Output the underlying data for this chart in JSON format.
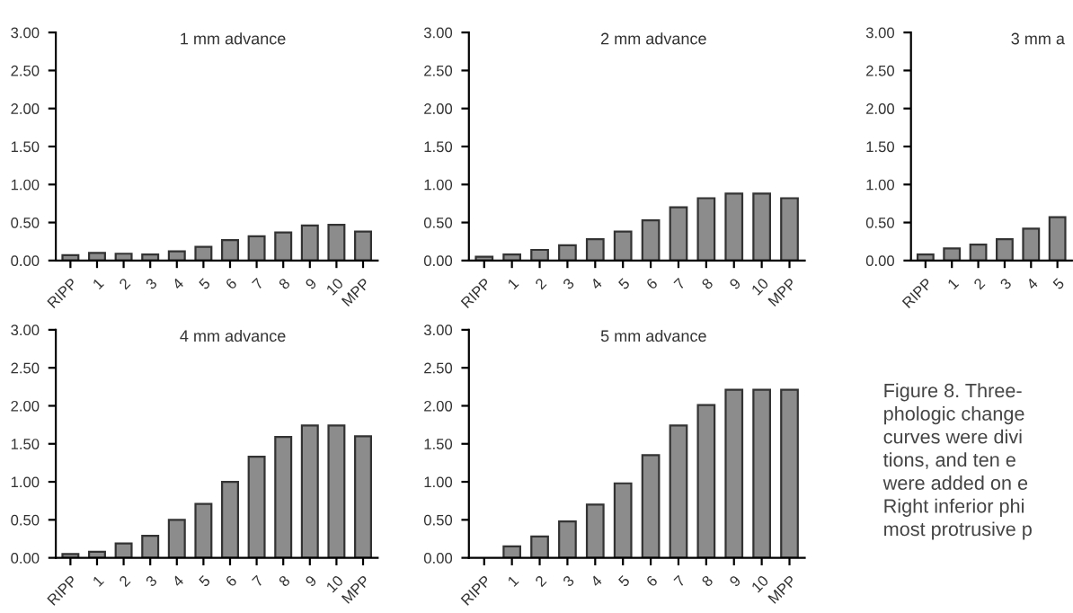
{
  "chart_data": [
    {
      "type": "bar",
      "title": "1 mm advance",
      "categories": [
        "RIPP",
        "1",
        "2",
        "3",
        "4",
        "5",
        "6",
        "7",
        "8",
        "9",
        "10",
        "MPP"
      ],
      "series": [
        {
          "color": "#8c8c8c",
          "values": [
            0.07,
            0.1,
            0.09,
            0.08,
            0.12,
            0.18,
            0.27,
            0.32,
            0.37,
            0.46,
            0.47,
            0.38
          ]
        }
      ],
      "ylim": [
        0,
        3
      ],
      "yticks": [
        {
          "value": 0,
          "label": "0.00"
        },
        {
          "value": 0.5,
          "label": "0.50"
        },
        {
          "value": 1,
          "label": "1.00"
        },
        {
          "value": 1.5,
          "label": "1.50"
        },
        {
          "value": 2,
          "label": "2.00"
        },
        {
          "value": 2.5,
          "label": "2.50"
        },
        {
          "value": 3,
          "label": "3.00"
        }
      ],
      "grid": false
    },
    {
      "type": "bar",
      "title": "2 mm advance",
      "categories": [
        "RIPP",
        "1",
        "2",
        "3",
        "4",
        "5",
        "6",
        "7",
        "8",
        "9",
        "10",
        "MPP"
      ],
      "series": [
        {
          "color": "#8c8c8c",
          "values": [
            0.05,
            0.08,
            0.14,
            0.2,
            0.28,
            0.38,
            0.53,
            0.7,
            0.82,
            0.88,
            0.88,
            0.82
          ]
        }
      ],
      "ylim": [
        0,
        3
      ],
      "yticks": [
        {
          "value": 0,
          "label": "0.00"
        },
        {
          "value": 0.5,
          "label": "0.50"
        },
        {
          "value": 1,
          "label": "1.00"
        },
        {
          "value": 1.5,
          "label": "1.50"
        },
        {
          "value": 2,
          "label": "2.00"
        },
        {
          "value": 2.5,
          "label": "2.50"
        },
        {
          "value": 3,
          "label": "3.00"
        }
      ],
      "grid": false
    },
    {
      "type": "bar",
      "title": "3 mm a",
      "categories": [
        "RIPP",
        "1",
        "2",
        "3",
        "4",
        "5"
      ],
      "series": [
        {
          "color": "#8c8c8c",
          "values": [
            0.08,
            0.16,
            0.21,
            0.28,
            0.42,
            0.57
          ]
        }
      ],
      "ylim": [
        0,
        3
      ],
      "yticks": [
        {
          "value": 0,
          "label": "0.00"
        },
        {
          "value": 0.5,
          "label": "0.50"
        },
        {
          "value": 1,
          "label": "1.00"
        },
        {
          "value": 1.5,
          "label": "1.50"
        },
        {
          "value": 2,
          "label": "2.00"
        },
        {
          "value": 2.5,
          "label": "2.50"
        },
        {
          "value": 3,
          "label": "3.00"
        }
      ],
      "grid": false
    },
    {
      "type": "bar",
      "title": "4 mm advance",
      "categories": [
        "RIPP",
        "1",
        "2",
        "3",
        "4",
        "5",
        "6",
        "7",
        "8",
        "9",
        "10",
        "MPP"
      ],
      "series": [
        {
          "color": "#8c8c8c",
          "values": [
            0.05,
            0.08,
            0.19,
            0.29,
            0.5,
            0.71,
            1.0,
            1.33,
            1.59,
            1.74,
            1.74,
            1.6
          ]
        }
      ],
      "ylim": [
        0,
        3
      ],
      "yticks": [
        {
          "value": 0,
          "label": "0.00"
        },
        {
          "value": 0.5,
          "label": "0.50"
        },
        {
          "value": 1,
          "label": "1.00"
        },
        {
          "value": 1.5,
          "label": "1.50"
        },
        {
          "value": 2,
          "label": "2.00"
        },
        {
          "value": 2.5,
          "label": "2.50"
        },
        {
          "value": 3,
          "label": "3.00"
        }
      ],
      "grid": false
    },
    {
      "type": "bar",
      "title": "5 mm advance",
      "categories": [
        "RIPP",
        "1",
        "2",
        "3",
        "4",
        "5",
        "6",
        "7",
        "8",
        "9",
        "10",
        "MPP"
      ],
      "series": [
        {
          "color": "#8c8c8c",
          "values": [
            null,
            0.15,
            0.28,
            0.48,
            0.7,
            0.98,
            1.35,
            1.74,
            2.01,
            2.21,
            2.21,
            2.21
          ]
        }
      ],
      "ylim": [
        0,
        3
      ],
      "yticks": [
        {
          "value": 0,
          "label": "0.00"
        },
        {
          "value": 0.5,
          "label": "0.50"
        },
        {
          "value": 1,
          "label": "1.00"
        },
        {
          "value": 1.5,
          "label": "1.50"
        },
        {
          "value": 2,
          "label": "2.00"
        },
        {
          "value": 2.5,
          "label": "2.50"
        },
        {
          "value": 3,
          "label": "3.00"
        }
      ],
      "grid": false
    },
    {
      "type": "other",
      "annotations": [
        "Figure 8. Three-",
        "phologic change",
        "curves were divi",
        "tions, and ten e",
        "were added on e",
        "Right inferior phi",
        "most protrusive p"
      ]
    }
  ]
}
